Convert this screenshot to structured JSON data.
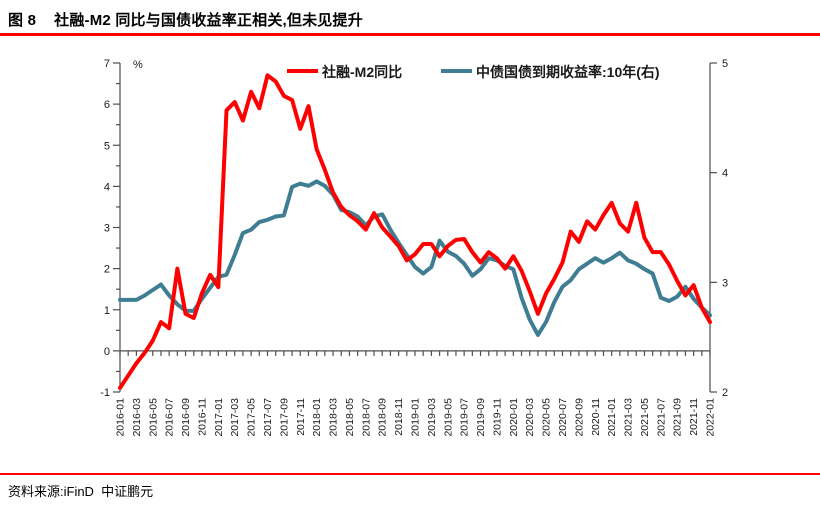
{
  "title": {
    "figure_label": "图 8",
    "text": "社融-M2 同比与国债收益率正相关,但未见提升"
  },
  "source": {
    "text": "资料来源:iFinD  中证鹏元"
  },
  "colors": {
    "rule_red": "#fe0000",
    "series_red": "#fe0000",
    "series_teal": "#3e7d92",
    "axis_line": "#4d4d4d",
    "tick_label": "#1a1a1a"
  },
  "chart_data": {
    "type": "line",
    "title": "社融-M2 同比与国债收益率正相关,但未见提升",
    "legend_position": "top",
    "grid": false,
    "x": [
      "2016-01",
      "2016-02",
      "2016-03",
      "2016-04",
      "2016-05",
      "2016-06",
      "2016-07",
      "2016-08",
      "2016-09",
      "2016-10",
      "2016-11",
      "2016-12",
      "2017-01",
      "2017-02",
      "2017-03",
      "2017-04",
      "2017-05",
      "2017-06",
      "2017-07",
      "2017-08",
      "2017-09",
      "2017-10",
      "2017-11",
      "2017-12",
      "2018-01",
      "2018-02",
      "2018-03",
      "2018-04",
      "2018-05",
      "2018-06",
      "2018-07",
      "2018-08",
      "2018-09",
      "2018-10",
      "2018-11",
      "2018-12",
      "2019-01",
      "2019-02",
      "2019-03",
      "2019-04",
      "2019-05",
      "2019-06",
      "2019-07",
      "2019-08",
      "2019-09",
      "2019-10",
      "2019-11",
      "2019-12",
      "2020-01",
      "2020-02",
      "2020-03",
      "2020-04",
      "2020-05",
      "2020-06",
      "2020-07",
      "2020-08",
      "2020-09",
      "2020-10",
      "2020-11",
      "2020-12",
      "2021-01",
      "2021-02",
      "2021-03",
      "2021-04",
      "2021-05",
      "2021-06",
      "2021-07",
      "2021-08",
      "2021-09",
      "2021-10",
      "2021-11",
      "2021-12",
      "2022-01"
    ],
    "x_tick_step": 2,
    "left_axis": {
      "unit": "%",
      "min": -1,
      "max": 7,
      "ticks": [
        7,
        6,
        5,
        4,
        3,
        2,
        1,
        0,
        -1
      ],
      "minor_step": 0.5
    },
    "right_axis": {
      "min": 2,
      "max": 5,
      "ticks": [
        5,
        4,
        3,
        2
      ]
    },
    "series": [
      {
        "name": "社融-M2同比",
        "axis": "left",
        "color": "#fe0000",
        "values": [
          -0.9,
          -0.6,
          -0.3,
          -0.05,
          0.25,
          0.7,
          0.55,
          2.0,
          0.9,
          0.8,
          1.4,
          1.85,
          1.55,
          5.85,
          6.05,
          5.6,
          6.3,
          5.9,
          6.7,
          6.55,
          6.2,
          6.1,
          5.4,
          5.95,
          4.9,
          4.4,
          3.85,
          3.5,
          3.3,
          3.15,
          2.95,
          3.35,
          3.0,
          2.78,
          2.55,
          2.2,
          2.35,
          2.6,
          2.6,
          2.3,
          2.55,
          2.7,
          2.72,
          2.4,
          2.15,
          2.4,
          2.25,
          2.0,
          2.3,
          1.95,
          1.45,
          0.9,
          1.4,
          1.75,
          2.15,
          2.9,
          2.65,
          3.15,
          2.95,
          3.3,
          3.6,
          3.1,
          2.9,
          3.6,
          2.75,
          2.4,
          2.4,
          2.1,
          1.7,
          1.35,
          1.6,
          1.05,
          0.7
        ]
      },
      {
        "name": "中债国债到期收益率:10年(右)",
        "axis": "right",
        "color": "#3e7d92",
        "values": [
          2.84,
          2.84,
          2.84,
          2.88,
          2.93,
          2.98,
          2.88,
          2.8,
          2.74,
          2.74,
          2.85,
          2.95,
          3.05,
          3.07,
          3.25,
          3.45,
          3.48,
          3.55,
          3.57,
          3.6,
          3.61,
          3.87,
          3.9,
          3.88,
          3.92,
          3.88,
          3.8,
          3.66,
          3.64,
          3.6,
          3.52,
          3.6,
          3.62,
          3.48,
          3.36,
          3.25,
          3.14,
          3.08,
          3.14,
          3.38,
          3.28,
          3.24,
          3.17,
          3.06,
          3.12,
          3.22,
          3.2,
          3.15,
          3.12,
          2.86,
          2.66,
          2.52,
          2.64,
          2.82,
          2.96,
          3.02,
          3.12,
          3.17,
          3.22,
          3.18,
          3.22,
          3.27,
          3.2,
          3.17,
          3.12,
          3.08,
          2.86,
          2.83,
          2.87,
          2.96,
          2.85,
          2.77,
          2.7
        ]
      }
    ]
  }
}
